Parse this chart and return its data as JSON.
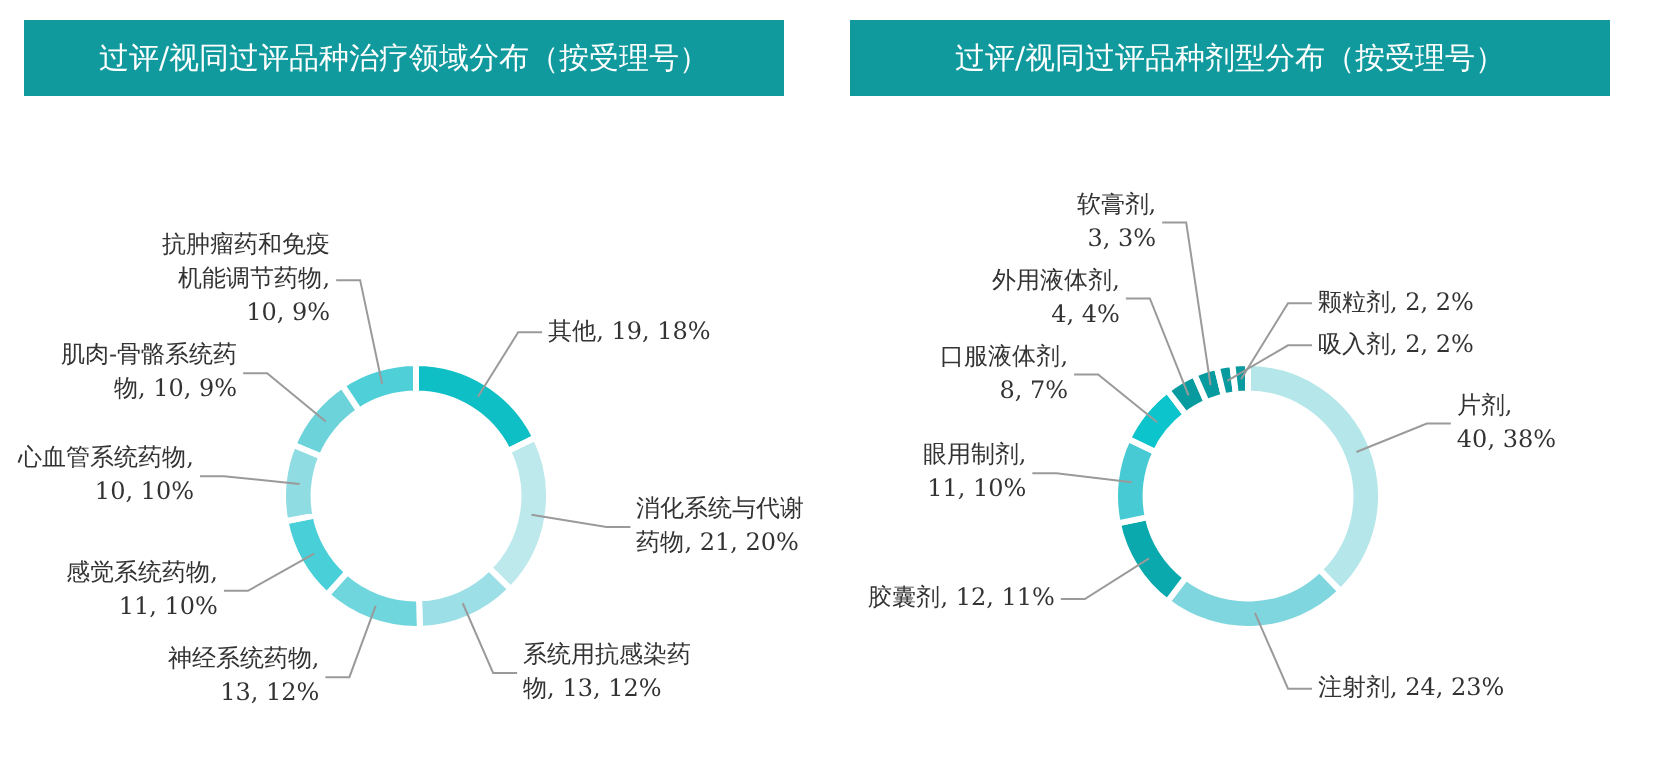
{
  "chart_data": [
    {
      "type": "donut",
      "title": "过评/视同过评品种治疗领域分布（按受理号）",
      "categories": [
        "其他",
        "消化系统与代谢药物",
        "系统用抗感染药物",
        "神经系统药物",
        "感觉系统药物",
        "心血管系统药物",
        "肌肉-骨骼系统药物",
        "抗肿瘤药和免疫机能调节药物"
      ],
      "values": [
        19,
        21,
        13,
        13,
        11,
        10,
        10,
        10
      ],
      "value_labels": [
        ", 19, 18%",
        ", 21, 20%",
        ", 13, 12%",
        ", 13, 12%",
        ", 11, 10%",
        ", 10, 10%",
        ", 10, 9%",
        ", 10, 9%"
      ],
      "colors": [
        "#0fbfc6",
        "#bde9ed",
        "#9ddfe6",
        "#6fd6de",
        "#48cfd8",
        "#8fdce3",
        "#6cd3db",
        "#4fd0d8"
      ]
    },
    {
      "type": "donut",
      "title": "过评/视同过评品种剂型分布（按受理号）",
      "categories": [
        "片剂",
        "注射剂",
        "胶囊剂",
        "眼用制剂",
        "口服液体剂",
        "外用液体剂",
        "软膏剂",
        "吸入剂",
        "颗粒剂"
      ],
      "values": [
        40,
        24,
        12,
        11,
        8,
        4,
        3,
        2,
        2
      ],
      "value_labels": [
        ",\n40, 38%",
        ", 24, 23%",
        ", 12, 11%",
        ",\n11, 10%",
        ", 8, 7%",
        ", 4, 4%",
        ",\n3, 3%",
        ", 2, 2%",
        ", 2, 2%"
      ],
      "colors": [
        "#b5e6ea",
        "#7fd6de",
        "#0aa9ad",
        "#47cad3",
        "#0bc4cc",
        "#079a9e",
        "#079a9e",
        "#079a9e",
        "#079a9e"
      ]
    }
  ]
}
